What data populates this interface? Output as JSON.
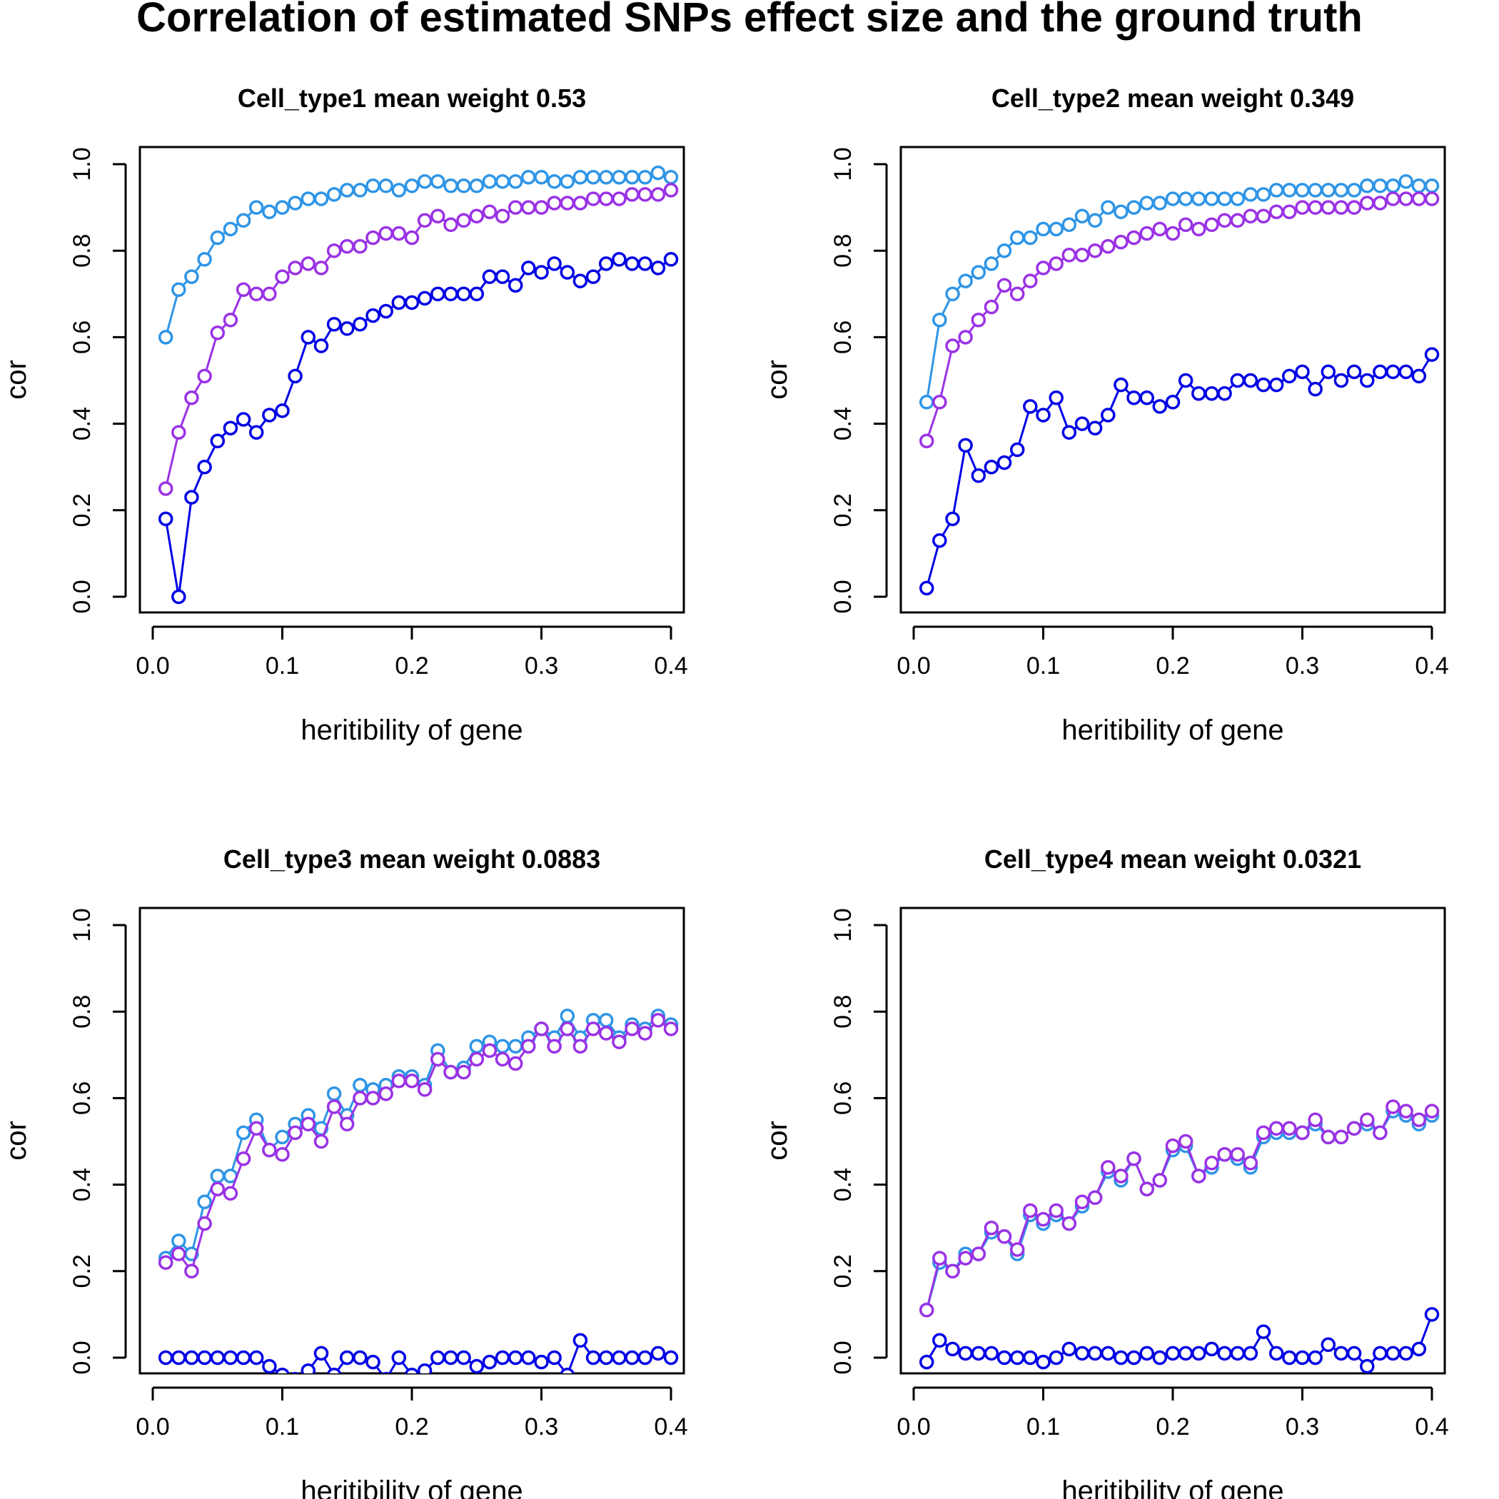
{
  "title": "Correlation of estimated SNPs effect size and the ground truth",
  "colors": {
    "series_a": "#2f95e6",
    "series_b": "#9a32e6",
    "series_c": "#0000e6"
  },
  "chart_data": [
    {
      "type": "line",
      "title": "Cell_type1 mean weight 0.53",
      "xlabel": "heritibility of gene",
      "ylabel": "cor",
      "xlim": [
        0.0,
        0.4
      ],
      "ylim": [
        0.0,
        1.0
      ],
      "xticks": [
        "0.0",
        "0.1",
        "0.2",
        "0.3",
        "0.4"
      ],
      "yticks": [
        "0.0",
        "0.2",
        "0.4",
        "0.6",
        "0.8",
        "1.0"
      ],
      "x": [
        0.01,
        0.02,
        0.03,
        0.04,
        0.05,
        0.06,
        0.07,
        0.08,
        0.09,
        0.1,
        0.11,
        0.12,
        0.13,
        0.14,
        0.15,
        0.16,
        0.17,
        0.18,
        0.19,
        0.2,
        0.21,
        0.22,
        0.23,
        0.24,
        0.25,
        0.26,
        0.27,
        0.28,
        0.29,
        0.3,
        0.31,
        0.32,
        0.33,
        0.34,
        0.35,
        0.36,
        0.37,
        0.38,
        0.39,
        0.4
      ],
      "series": [
        {
          "color": "#2f95e6",
          "values": [
            0.6,
            0.71,
            0.74,
            0.78,
            0.83,
            0.85,
            0.87,
            0.9,
            0.89,
            0.9,
            0.91,
            0.92,
            0.92,
            0.93,
            0.94,
            0.94,
            0.95,
            0.95,
            0.94,
            0.95,
            0.96,
            0.96,
            0.95,
            0.95,
            0.95,
            0.96,
            0.96,
            0.96,
            0.97,
            0.97,
            0.96,
            0.96,
            0.97,
            0.97,
            0.97,
            0.97,
            0.97,
            0.97,
            0.98,
            0.97
          ]
        },
        {
          "color": "#9a32e6",
          "values": [
            0.25,
            0.38,
            0.46,
            0.51,
            0.61,
            0.64,
            0.71,
            0.7,
            0.7,
            0.74,
            0.76,
            0.77,
            0.76,
            0.8,
            0.81,
            0.81,
            0.83,
            0.84,
            0.84,
            0.83,
            0.87,
            0.88,
            0.86,
            0.87,
            0.88,
            0.89,
            0.88,
            0.9,
            0.9,
            0.9,
            0.91,
            0.91,
            0.91,
            0.92,
            0.92,
            0.92,
            0.93,
            0.93,
            0.93,
            0.94
          ]
        },
        {
          "color": "#0000e6",
          "values": [
            0.18,
            0.0,
            0.23,
            0.3,
            0.36,
            0.39,
            0.41,
            0.38,
            0.42,
            0.43,
            0.51,
            0.6,
            0.58,
            0.63,
            0.62,
            0.63,
            0.65,
            0.66,
            0.68,
            0.68,
            0.69,
            0.7,
            0.7,
            0.7,
            0.7,
            0.74,
            0.74,
            0.72,
            0.76,
            0.75,
            0.77,
            0.75,
            0.73,
            0.74,
            0.77,
            0.78,
            0.77,
            0.77,
            0.76,
            0.78
          ]
        }
      ]
    },
    {
      "type": "line",
      "title": "Cell_type2 mean weight 0.349",
      "xlabel": "heritibility of gene",
      "ylabel": "cor",
      "xlim": [
        0.0,
        0.4
      ],
      "ylim": [
        0.0,
        1.0
      ],
      "xticks": [
        "0.0",
        "0.1",
        "0.2",
        "0.3",
        "0.4"
      ],
      "yticks": [
        "0.0",
        "0.2",
        "0.4",
        "0.6",
        "0.8",
        "1.0"
      ],
      "x": [
        0.01,
        0.02,
        0.03,
        0.04,
        0.05,
        0.06,
        0.07,
        0.08,
        0.09,
        0.1,
        0.11,
        0.12,
        0.13,
        0.14,
        0.15,
        0.16,
        0.17,
        0.18,
        0.19,
        0.2,
        0.21,
        0.22,
        0.23,
        0.24,
        0.25,
        0.26,
        0.27,
        0.28,
        0.29,
        0.3,
        0.31,
        0.32,
        0.33,
        0.34,
        0.35,
        0.36,
        0.37,
        0.38,
        0.39,
        0.4
      ],
      "series": [
        {
          "color": "#2f95e6",
          "values": [
            0.45,
            0.64,
            0.7,
            0.73,
            0.75,
            0.77,
            0.8,
            0.83,
            0.83,
            0.85,
            0.85,
            0.86,
            0.88,
            0.87,
            0.9,
            0.89,
            0.9,
            0.91,
            0.91,
            0.92,
            0.92,
            0.92,
            0.92,
            0.92,
            0.92,
            0.93,
            0.93,
            0.94,
            0.94,
            0.94,
            0.94,
            0.94,
            0.94,
            0.94,
            0.95,
            0.95,
            0.95,
            0.96,
            0.95,
            0.95
          ]
        },
        {
          "color": "#9a32e6",
          "values": [
            0.36,
            0.45,
            0.58,
            0.6,
            0.64,
            0.67,
            0.72,
            0.7,
            0.73,
            0.76,
            0.77,
            0.79,
            0.79,
            0.8,
            0.81,
            0.82,
            0.83,
            0.84,
            0.85,
            0.84,
            0.86,
            0.85,
            0.86,
            0.87,
            0.87,
            0.88,
            0.88,
            0.89,
            0.89,
            0.9,
            0.9,
            0.9,
            0.9,
            0.9,
            0.91,
            0.91,
            0.92,
            0.92,
            0.92,
            0.92
          ]
        },
        {
          "color": "#0000e6",
          "values": [
            0.02,
            0.13,
            0.18,
            0.35,
            0.28,
            0.3,
            0.31,
            0.34,
            0.44,
            0.42,
            0.46,
            0.38,
            0.4,
            0.39,
            0.42,
            0.49,
            0.46,
            0.46,
            0.44,
            0.45,
            0.5,
            0.47,
            0.47,
            0.47,
            0.5,
            0.5,
            0.49,
            0.49,
            0.51,
            0.52,
            0.48,
            0.52,
            0.5,
            0.52,
            0.5,
            0.52,
            0.52,
            0.52,
            0.51,
            0.56
          ]
        }
      ]
    },
    {
      "type": "line",
      "title": "Cell_type3 mean weight 0.0883",
      "xlabel": "heritibility of gene",
      "ylabel": "cor",
      "xlim": [
        0.0,
        0.4
      ],
      "ylim": [
        0.0,
        1.0
      ],
      "xticks": [
        "0.0",
        "0.1",
        "0.2",
        "0.3",
        "0.4"
      ],
      "yticks": [
        "0.0",
        "0.2",
        "0.4",
        "0.6",
        "0.8",
        "1.0"
      ],
      "x": [
        0.01,
        0.02,
        0.03,
        0.04,
        0.05,
        0.06,
        0.07,
        0.08,
        0.09,
        0.1,
        0.11,
        0.12,
        0.13,
        0.14,
        0.15,
        0.16,
        0.17,
        0.18,
        0.19,
        0.2,
        0.21,
        0.22,
        0.23,
        0.24,
        0.25,
        0.26,
        0.27,
        0.28,
        0.29,
        0.3,
        0.31,
        0.32,
        0.33,
        0.34,
        0.35,
        0.36,
        0.37,
        0.38,
        0.39,
        0.4
      ],
      "series": [
        {
          "color": "#2f95e6",
          "values": [
            0.23,
            0.27,
            0.24,
            0.36,
            0.42,
            0.42,
            0.52,
            0.55,
            0.48,
            0.51,
            0.54,
            0.56,
            0.53,
            0.61,
            0.56,
            0.63,
            0.62,
            0.63,
            0.65,
            0.65,
            0.63,
            0.71,
            0.66,
            0.67,
            0.72,
            0.73,
            0.72,
            0.72,
            0.74,
            0.76,
            0.74,
            0.79,
            0.74,
            0.78,
            0.78,
            0.74,
            0.77,
            0.76,
            0.79,
            0.77
          ]
        },
        {
          "color": "#9a32e6",
          "values": [
            0.22,
            0.24,
            0.2,
            0.31,
            0.39,
            0.38,
            0.46,
            0.53,
            0.48,
            0.47,
            0.52,
            0.54,
            0.5,
            0.58,
            0.54,
            0.6,
            0.6,
            0.61,
            0.64,
            0.64,
            0.62,
            0.69,
            0.66,
            0.66,
            0.69,
            0.71,
            0.69,
            0.68,
            0.72,
            0.76,
            0.72,
            0.76,
            0.72,
            0.76,
            0.75,
            0.73,
            0.76,
            0.75,
            0.78,
            0.76
          ]
        },
        {
          "color": "#0000e6",
          "values": [
            0.0,
            0.0,
            0.0,
            0.0,
            0.0,
            0.0,
            0.0,
            0.0,
            -0.02,
            -0.04,
            -0.05,
            -0.03,
            0.01,
            -0.04,
            0.0,
            0.0,
            -0.01,
            -0.05,
            0.0,
            -0.04,
            -0.03,
            0.0,
            0.0,
            0.0,
            -0.02,
            -0.01,
            0.0,
            0.0,
            0.0,
            -0.01,
            0.0,
            -0.04,
            0.04,
            0.0,
            0.0,
            0.0,
            0.0,
            0.0,
            0.01,
            0.0
          ]
        }
      ]
    },
    {
      "type": "line",
      "title": "Cell_type4 mean weight 0.0321",
      "xlabel": "heritibility of gene",
      "ylabel": "cor",
      "xlim": [
        0.0,
        0.4
      ],
      "ylim": [
        0.0,
        1.0
      ],
      "xticks": [
        "0.0",
        "0.1",
        "0.2",
        "0.3",
        "0.4"
      ],
      "yticks": [
        "0.0",
        "0.2",
        "0.4",
        "0.6",
        "0.8",
        "1.0"
      ],
      "x": [
        0.01,
        0.02,
        0.03,
        0.04,
        0.05,
        0.06,
        0.07,
        0.08,
        0.09,
        0.1,
        0.11,
        0.12,
        0.13,
        0.14,
        0.15,
        0.16,
        0.17,
        0.18,
        0.19,
        0.2,
        0.21,
        0.22,
        0.23,
        0.24,
        0.25,
        0.26,
        0.27,
        0.28,
        0.29,
        0.3,
        0.31,
        0.32,
        0.33,
        0.34,
        0.35,
        0.36,
        0.37,
        0.38,
        0.39,
        0.4
      ],
      "series": [
        {
          "color": "#2f95e6",
          "values": [
            0.11,
            0.22,
            0.2,
            0.24,
            0.24,
            0.29,
            0.28,
            0.24,
            0.33,
            0.31,
            0.33,
            0.31,
            0.35,
            0.37,
            0.43,
            0.41,
            0.46,
            0.39,
            0.41,
            0.48,
            0.49,
            0.42,
            0.44,
            0.47,
            0.46,
            0.44,
            0.51,
            0.52,
            0.52,
            0.52,
            0.54,
            0.51,
            0.51,
            0.53,
            0.54,
            0.52,
            0.57,
            0.56,
            0.54,
            0.56
          ]
        },
        {
          "color": "#9a32e6",
          "values": [
            0.11,
            0.23,
            0.2,
            0.23,
            0.24,
            0.3,
            0.28,
            0.25,
            0.34,
            0.32,
            0.34,
            0.31,
            0.36,
            0.37,
            0.44,
            0.42,
            0.46,
            0.39,
            0.41,
            0.49,
            0.5,
            0.42,
            0.45,
            0.47,
            0.47,
            0.45,
            0.52,
            0.53,
            0.53,
            0.52,
            0.55,
            0.51,
            0.51,
            0.53,
            0.55,
            0.52,
            0.58,
            0.57,
            0.55,
            0.57
          ]
        },
        {
          "color": "#0000e6",
          "values": [
            -0.01,
            0.04,
            0.02,
            0.01,
            0.01,
            0.01,
            0.0,
            0.0,
            0.0,
            -0.01,
            0.0,
            0.02,
            0.01,
            0.01,
            0.01,
            0.0,
            0.0,
            0.01,
            0.0,
            0.01,
            0.01,
            0.01,
            0.02,
            0.01,
            0.01,
            0.01,
            0.06,
            0.01,
            0.0,
            0.0,
            0.0,
            0.03,
            0.01,
            0.01,
            -0.02,
            0.01,
            0.01,
            0.01,
            0.02,
            0.1
          ]
        }
      ]
    }
  ]
}
